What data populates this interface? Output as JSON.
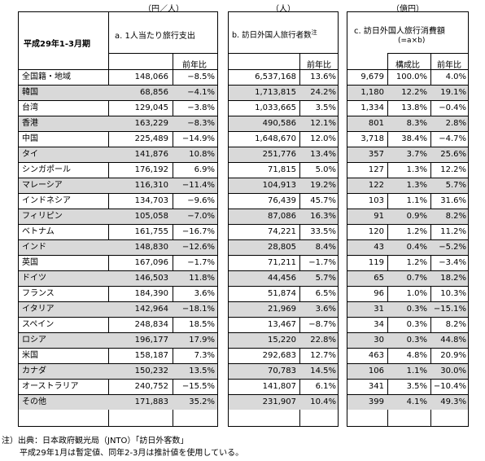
{
  "units": {
    "a": "（円／人）",
    "b": "（人）",
    "c": "（億円）"
  },
  "header": {
    "period": "平成29年1-3月期",
    "a_title": "a. 1人当たり旅行支出",
    "b_title": "b. 訪日外国人旅行者数",
    "b_note": "注",
    "c_title": "c. 訪日外国人旅行消費額",
    "c_formula": "(=a×b)",
    "yoy": "前年比",
    "share": "構成比"
  },
  "rows": [
    {
      "name": "全国籍・地域",
      "a": "148,066",
      "a_yoy": "−8.5%",
      "b": "6,537,168",
      "b_yoy": "13.6%",
      "c": "9,679",
      "share": "100.0%",
      "c_yoy": "4.0%"
    },
    {
      "name": "韓国",
      "a": "68,856",
      "a_yoy": "−4.1%",
      "b": "1,713,815",
      "b_yoy": "24.2%",
      "c": "1,180",
      "share": "12.2%",
      "c_yoy": "19.1%"
    },
    {
      "name": "台湾",
      "a": "129,045",
      "a_yoy": "−3.8%",
      "b": "1,033,665",
      "b_yoy": "3.5%",
      "c": "1,334",
      "share": "13.8%",
      "c_yoy": "−0.4%"
    },
    {
      "name": "香港",
      "a": "163,229",
      "a_yoy": "−8.3%",
      "b": "490,586",
      "b_yoy": "12.1%",
      "c": "801",
      "share": "8.3%",
      "c_yoy": "2.8%"
    },
    {
      "name": "中国",
      "a": "225,489",
      "a_yoy": "−14.9%",
      "b": "1,648,670",
      "b_yoy": "12.0%",
      "c": "3,718",
      "share": "38.4%",
      "c_yoy": "−4.7%"
    },
    {
      "name": "タイ",
      "a": "141,876",
      "a_yoy": "10.8%",
      "b": "251,776",
      "b_yoy": "13.4%",
      "c": "357",
      "share": "3.7%",
      "c_yoy": "25.6%"
    },
    {
      "name": "シンガポール",
      "a": "176,192",
      "a_yoy": "6.9%",
      "b": "71,815",
      "b_yoy": "5.0%",
      "c": "127",
      "share": "1.3%",
      "c_yoy": "12.2%"
    },
    {
      "name": "マレーシア",
      "a": "116,310",
      "a_yoy": "−11.4%",
      "b": "104,913",
      "b_yoy": "19.2%",
      "c": "122",
      "share": "1.3%",
      "c_yoy": "5.7%"
    },
    {
      "name": "インドネシア",
      "a": "134,703",
      "a_yoy": "−9.6%",
      "b": "76,439",
      "b_yoy": "45.7%",
      "c": "103",
      "share": "1.1%",
      "c_yoy": "31.6%"
    },
    {
      "name": "フィリピン",
      "a": "105,058",
      "a_yoy": "−7.0%",
      "b": "87,086",
      "b_yoy": "16.3%",
      "c": "91",
      "share": "0.9%",
      "c_yoy": "8.2%"
    },
    {
      "name": "ベトナム",
      "a": "161,755",
      "a_yoy": "−16.7%",
      "b": "74,221",
      "b_yoy": "33.5%",
      "c": "120",
      "share": "1.2%",
      "c_yoy": "11.2%"
    },
    {
      "name": "インド",
      "a": "148,830",
      "a_yoy": "−12.6%",
      "b": "28,805",
      "b_yoy": "8.4%",
      "c": "43",
      "share": "0.4%",
      "c_yoy": "−5.2%"
    },
    {
      "name": "英国",
      "a": "167,096",
      "a_yoy": "−1.7%",
      "b": "71,211",
      "b_yoy": "−1.7%",
      "c": "119",
      "share": "1.2%",
      "c_yoy": "−3.4%"
    },
    {
      "name": "ドイツ",
      "a": "146,503",
      "a_yoy": "11.8%",
      "b": "44,456",
      "b_yoy": "5.7%",
      "c": "65",
      "share": "0.7%",
      "c_yoy": "18.2%"
    },
    {
      "name": "フランス",
      "a": "184,390",
      "a_yoy": "3.6%",
      "b": "51,874",
      "b_yoy": "6.5%",
      "c": "96",
      "share": "1.0%",
      "c_yoy": "10.3%"
    },
    {
      "name": "イタリア",
      "a": "142,964",
      "a_yoy": "−18.1%",
      "b": "21,969",
      "b_yoy": "3.6%",
      "c": "31",
      "share": "0.3%",
      "c_yoy": "−15.1%"
    },
    {
      "name": "スペイン",
      "a": "248,834",
      "a_yoy": "18.5%",
      "b": "13,467",
      "b_yoy": "−8.7%",
      "c": "34",
      "share": "0.3%",
      "c_yoy": "8.2%"
    },
    {
      "name": "ロシア",
      "a": "196,177",
      "a_yoy": "17.9%",
      "b": "15,220",
      "b_yoy": "22.8%",
      "c": "30",
      "share": "0.3%",
      "c_yoy": "44.8%"
    },
    {
      "name": "米国",
      "a": "158,187",
      "a_yoy": "7.3%",
      "b": "292,683",
      "b_yoy": "12.7%",
      "c": "463",
      "share": "4.8%",
      "c_yoy": "20.9%"
    },
    {
      "name": "カナダ",
      "a": "150,232",
      "a_yoy": "13.5%",
      "b": "70,783",
      "b_yoy": "14.5%",
      "c": "106",
      "share": "1.1%",
      "c_yoy": "30.0%"
    },
    {
      "name": "オーストラリア",
      "a": "240,752",
      "a_yoy": "−15.5%",
      "b": "141,807",
      "b_yoy": "6.1%",
      "c": "341",
      "share": "3.5%",
      "c_yoy": "−10.4%"
    },
    {
      "name": "その他",
      "a": "171,883",
      "a_yoy": "35.2%",
      "b": "231,907",
      "b_yoy": "10.4%",
      "c": "399",
      "share": "4.1%",
      "c_yoy": "49.3%"
    }
  ],
  "notes": [
    "注）出典：日本政府観光局（JNTO）「訪日外客数」",
    "平成29年1月は暫定値、同年2-3月は推計値を使用している。"
  ]
}
